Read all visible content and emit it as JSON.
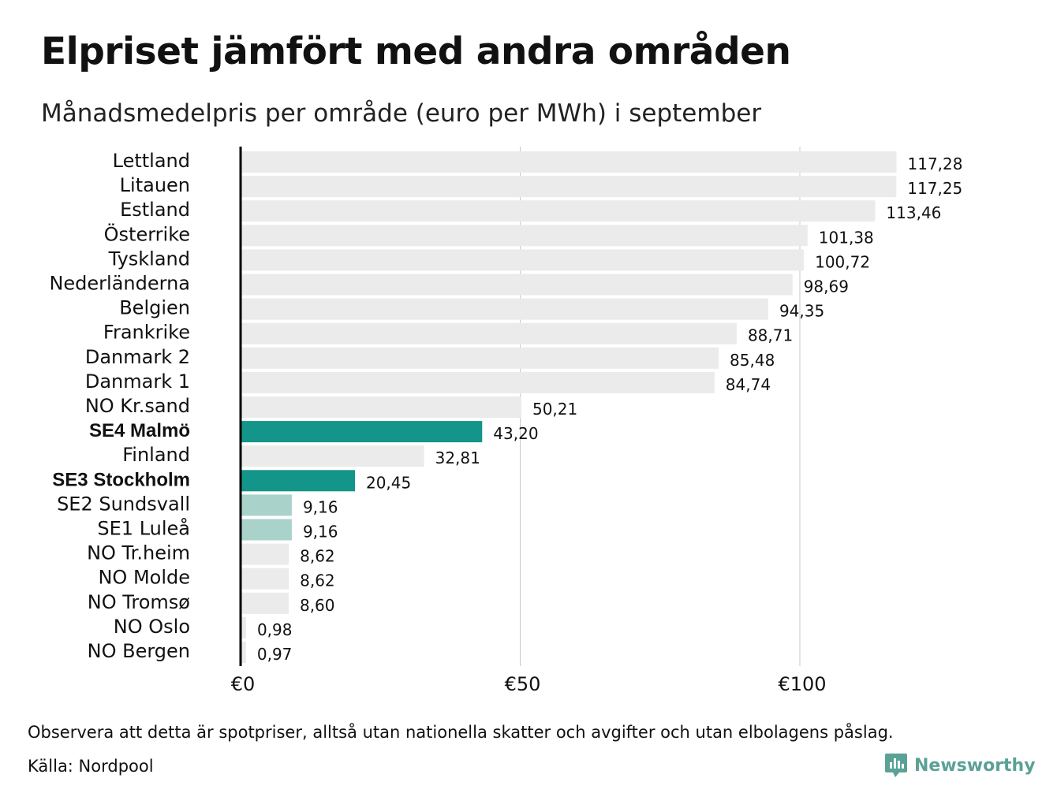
{
  "title": "Elpriset jämfört med andra områden",
  "subtitle": "Månadsmedelpris per område (euro per MWh) i september",
  "footnote": "Observera att detta är spotpriser, alltså utan nationella skatter och avgifter och utan elbolagens påslag.",
  "source": "Källa: Nordpool",
  "logo": {
    "text": "Newsworthy",
    "icon": "newsworthy-logo-icon",
    "color": "#5aa196"
  },
  "colors": {
    "highlight": "#13958a",
    "light_highlight": "#a9d3ca",
    "default_bar": "#ebebeb",
    "grid": "#c8c8c8",
    "axis": "#000000"
  },
  "chart_data": {
    "type": "bar",
    "orientation": "horizontal",
    "categories": [
      "Lettland",
      "Litauen",
      "Estland",
      "Österrike",
      "Tyskland",
      "Nederländerna",
      "Belgien",
      "Frankrike",
      "Danmark  2",
      "Danmark  1",
      "NO Kr.sand",
      "SE4 Malmö",
      "Finland",
      "SE3 Stockholm",
      "SE2  Sundsvall",
      "SE1  Luleå",
      "NO Tr.heim",
      "NO Molde",
      "NO Tromsø",
      "NO Oslo",
      "NO Bergen"
    ],
    "values": [
      117.28,
      117.25,
      113.46,
      101.38,
      100.72,
      98.69,
      94.35,
      88.71,
      85.48,
      84.74,
      50.21,
      43.2,
      32.81,
      20.45,
      9.16,
      9.16,
      8.62,
      8.62,
      8.6,
      0.98,
      0.97
    ],
    "value_labels": [
      "117,28",
      "117,25",
      "113,46",
      "101,38",
      "100,72",
      "98,69",
      "94,35",
      "88,71",
      "85,48",
      "84,74",
      "50,21",
      "43,20",
      "32,81",
      "20,45",
      "9,16",
      "9,16",
      "8,62",
      "8,62",
      "8,60",
      "0,98",
      "0,97"
    ],
    "highlight": [
      "none",
      "none",
      "none",
      "none",
      "none",
      "none",
      "none",
      "none",
      "none",
      "none",
      "none",
      "strong",
      "none",
      "strong",
      "light",
      "light",
      "none",
      "none",
      "none",
      "none",
      "none"
    ],
    "bold_labels": [
      "SE4 Malmö",
      "SE3 Stockholm"
    ],
    "x_ticks": [
      0,
      50,
      100
    ],
    "x_tick_labels": [
      "€0",
      "€50",
      "€100"
    ],
    "xlim": [
      0,
      117.28
    ],
    "title": "Elpriset jämfört med andra områden",
    "subtitle": "Månadsmedelpris per område (euro per MWh) i september",
    "xlabel": "",
    "ylabel": "",
    "grid": "vertical",
    "legend": "none"
  }
}
